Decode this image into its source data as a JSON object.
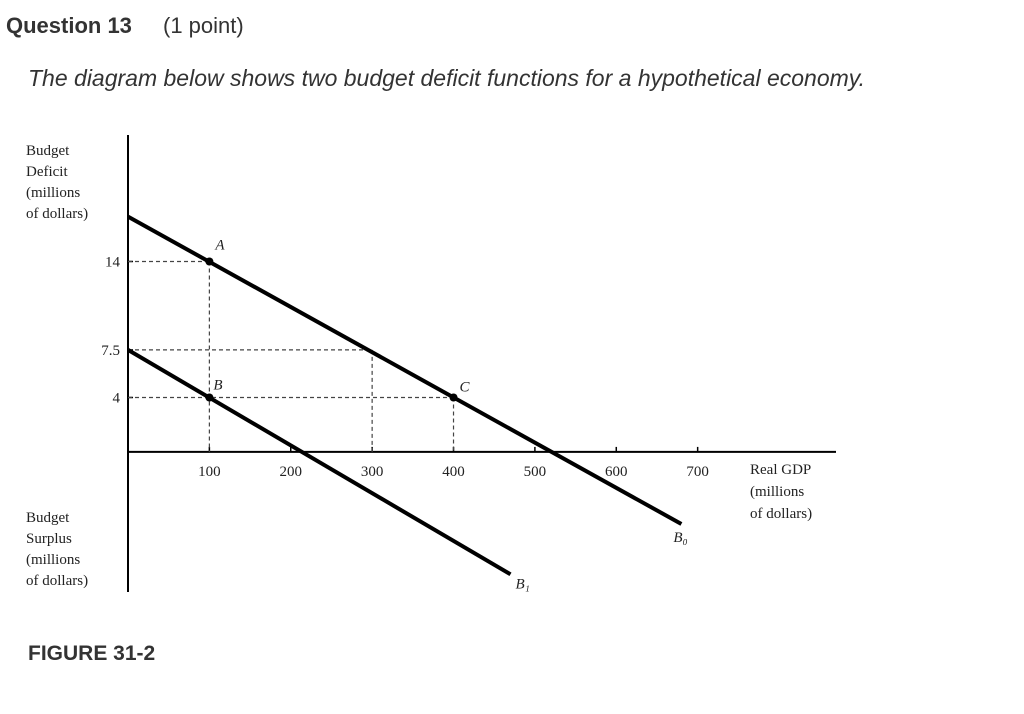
{
  "question": {
    "title": "Question 13",
    "points": "(1 point)",
    "prompt": "The diagram below shows two budget deficit functions for a hypothetical economy.",
    "caption": "FIGURE 31-2"
  },
  "chart_data": {
    "type": "line",
    "y_label_top": [
      "Budget",
      "Deficit",
      "(millions",
      "of dollars)"
    ],
    "y_label_bottom": [
      "Budget",
      "Surplus",
      "(millions",
      "of dollars)"
    ],
    "x_label": [
      "Real GDP",
      "(millions",
      "of dollars)"
    ],
    "xlim": [
      0,
      870
    ],
    "ylim": [
      -10.3,
      23.3
    ],
    "xticks": [
      100,
      200,
      300,
      400,
      500,
      600,
      700
    ],
    "yticks": [
      14,
      7.5,
      4
    ],
    "series": [
      {
        "name": "B₀",
        "color": "#000000",
        "x": [
          0,
          680
        ],
        "values": [
          17.3,
          -5.3
        ]
      },
      {
        "name": "B₁",
        "color": "#000000",
        "x": [
          0,
          470
        ],
        "values": [
          7.5,
          -9
        ]
      }
    ],
    "points": [
      {
        "label": "A",
        "x": 100,
        "y": 14
      },
      {
        "label": "B",
        "x": 100,
        "y": 4
      },
      {
        "label": "C",
        "x": 400,
        "y": 4
      }
    ],
    "guides": [
      {
        "x": 100,
        "y": 14
      },
      {
        "x": 300,
        "y": 7.5
      },
      {
        "x": 400,
        "y": 4
      }
    ]
  }
}
